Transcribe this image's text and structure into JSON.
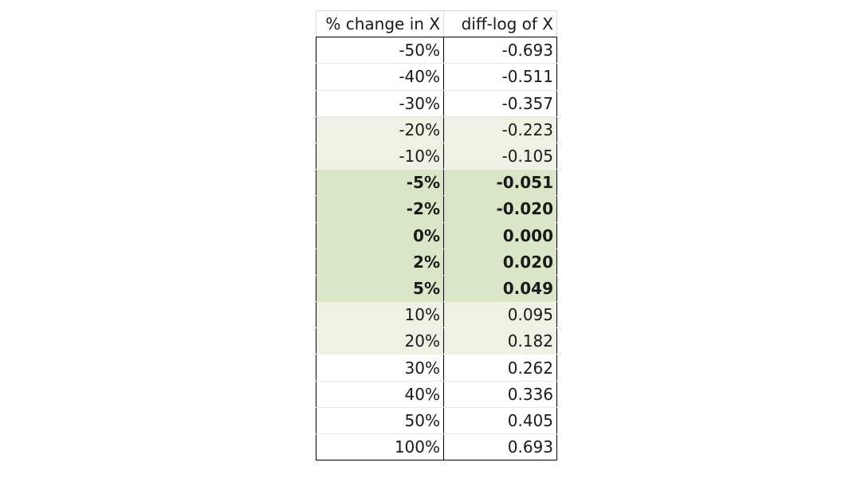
{
  "table": {
    "headers": [
      "% change in X",
      "diff-log of X"
    ],
    "rows": [
      {
        "pct": "-50%",
        "diff": "-0.693",
        "band": "none",
        "bold": false
      },
      {
        "pct": "-40%",
        "diff": "-0.511",
        "band": "none",
        "bold": false
      },
      {
        "pct": "-30%",
        "diff": "-0.357",
        "band": "none",
        "bold": false
      },
      {
        "pct": "-20%",
        "diff": "-0.223",
        "band": "light",
        "bold": false
      },
      {
        "pct": "-10%",
        "diff": "-0.105",
        "band": "light",
        "bold": false
      },
      {
        "pct": "-5%",
        "diff": "-0.051",
        "band": "mid",
        "bold": true
      },
      {
        "pct": "-2%",
        "diff": "-0.020",
        "band": "mid",
        "bold": true
      },
      {
        "pct": "0%",
        "diff": "0.000",
        "band": "mid",
        "bold": true
      },
      {
        "pct": "2%",
        "diff": "0.020",
        "band": "mid",
        "bold": true
      },
      {
        "pct": "5%",
        "diff": "0.049",
        "band": "mid",
        "bold": true
      },
      {
        "pct": "10%",
        "diff": "0.095",
        "band": "light",
        "bold": false
      },
      {
        "pct": "20%",
        "diff": "0.182",
        "band": "light",
        "bold": false
      },
      {
        "pct": "30%",
        "diff": "0.262",
        "band": "none",
        "bold": false
      },
      {
        "pct": "40%",
        "diff": "0.336",
        "band": "none",
        "bold": false
      },
      {
        "pct": "50%",
        "diff": "0.405",
        "band": "none",
        "bold": false
      },
      {
        "pct": "100%",
        "diff": "0.693",
        "band": "none",
        "bold": false
      }
    ]
  },
  "colors": {
    "band_light": "#eef1e4",
    "band_mid": "#dbe6c8",
    "border": "#000000"
  }
}
